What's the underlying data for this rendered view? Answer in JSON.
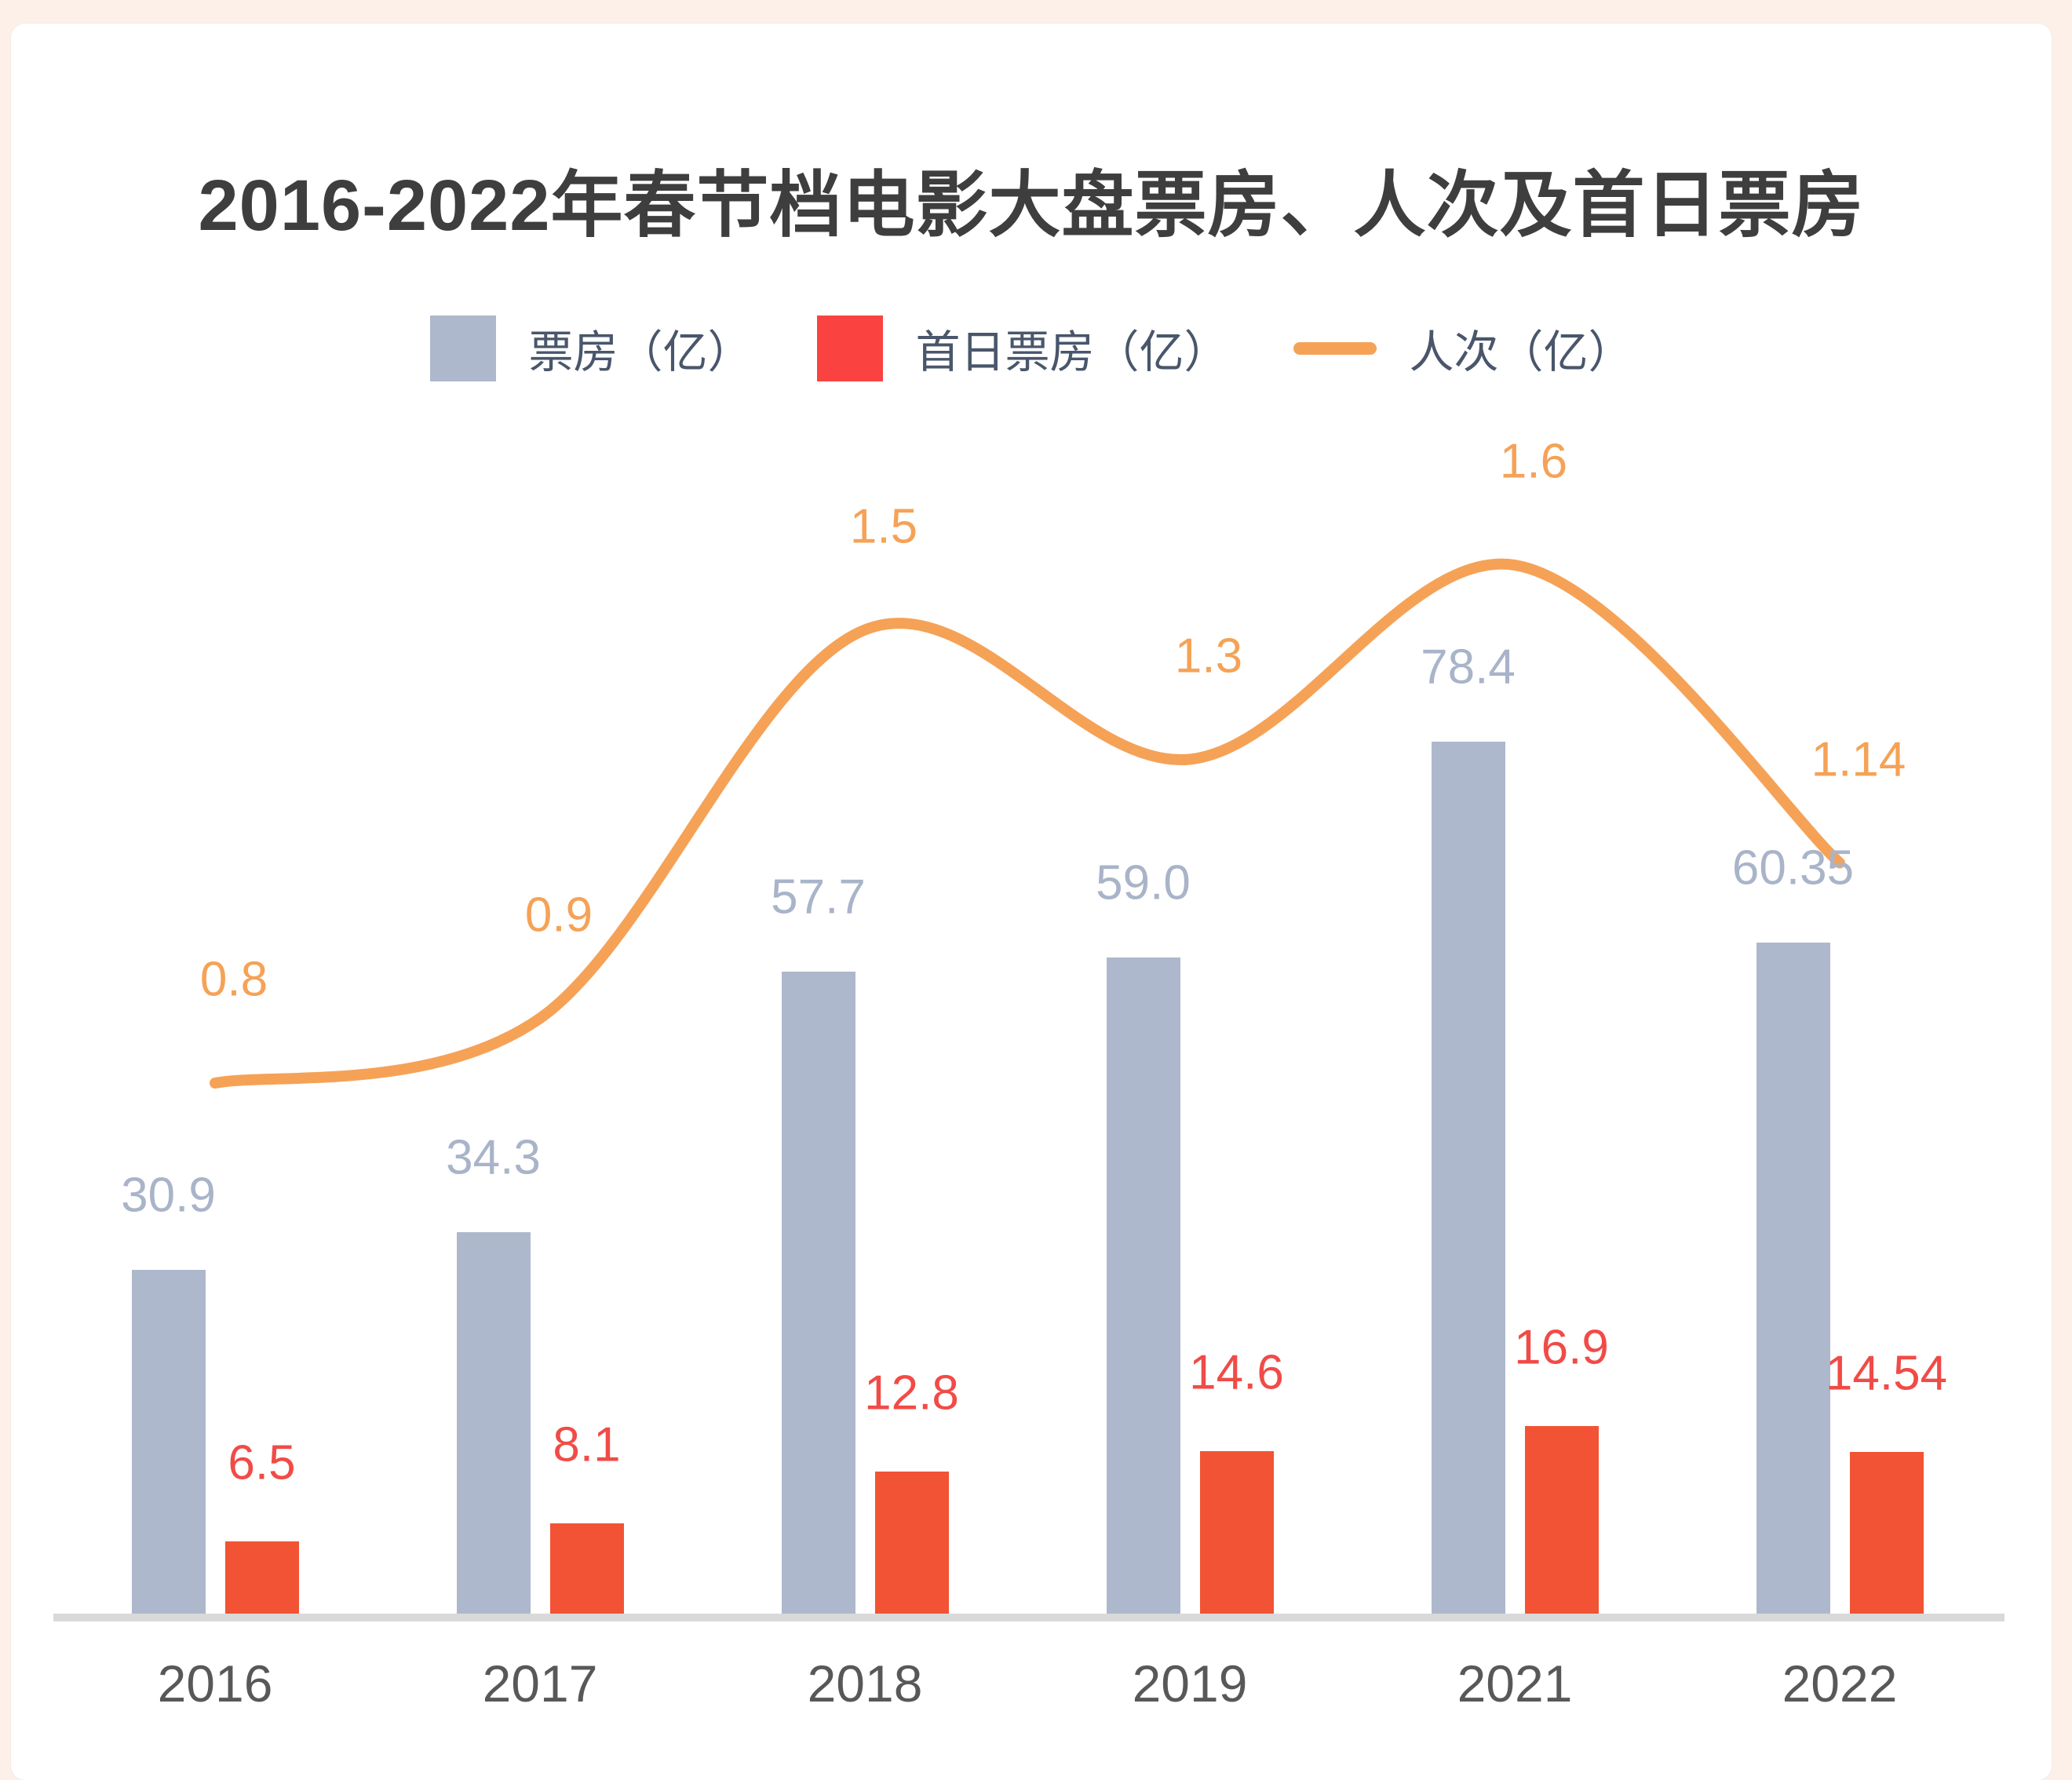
{
  "title": "2016-2022年春节档电影大盘票房、人次及首日票房",
  "colors": {
    "page_background": "#fcf0e9",
    "card_background": "#ffffff",
    "title_text": "#3e3e3e",
    "legend_text": "#49566b",
    "axis_line": "#d9d9d9",
    "x_label_text": "#585858"
  },
  "legend": [
    {
      "label": "票房（亿）",
      "shape": "square",
      "color": "#aeb8cc"
    },
    {
      "label": "首日票房（亿）",
      "shape": "square",
      "color": "#fa4340"
    },
    {
      "label": "人次（亿）",
      "shape": "line",
      "color": "#f5a257"
    }
  ],
  "chart_data": {
    "type": "bar",
    "subtype": "grouped bars with smooth overlay line",
    "title": "2016-2022年春节档电影大盘票房、人次及首日票房",
    "categories": [
      "2016",
      "2017",
      "2018",
      "2019",
      "2021",
      "2022"
    ],
    "series": [
      {
        "name": "票房（亿）",
        "type": "bar",
        "color": "#aeb8cc",
        "label_color": "#a9b4c9",
        "values": [
          30.9,
          34.3,
          57.7,
          59.0,
          78.4,
          60.35
        ],
        "labels": [
          "30.9",
          "34.3",
          "57.7",
          "59.0",
          "78.4",
          "60.35"
        ]
      },
      {
        "name": "首日票房（亿）",
        "type": "bar",
        "color": "#f25335",
        "label_color": "#f14b47",
        "values": [
          6.5,
          8.1,
          12.8,
          14.6,
          16.9,
          14.54
        ],
        "labels": [
          "6.5",
          "8.1",
          "12.8",
          "14.6",
          "16.9",
          "14.54"
        ]
      },
      {
        "name": "人次（亿）",
        "type": "line",
        "color": "#f5a257",
        "label_color": "#f5a257",
        "values": [
          0.8,
          0.9,
          1.5,
          1.3,
          1.6,
          1.14
        ],
        "labels": [
          "0.8",
          "0.9",
          "1.5",
          "1.3",
          "1.6",
          "1.14"
        ]
      }
    ],
    "xlabel": "",
    "ylabel": "",
    "bar_axis_max_estimate": 85,
    "line_axis_max_estimate": 1.8,
    "grid": false,
    "legend_position": "top",
    "data_labels": true
  }
}
